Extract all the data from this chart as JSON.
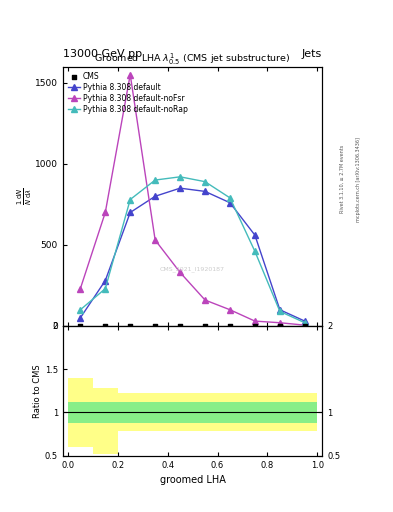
{
  "title_top": "13000 GeV pp",
  "title_right": "Jets",
  "plot_title": "Groomed LHA $\\lambda^{1}_{0.5}$ (CMS jet substructure)",
  "xlabel": "groomed LHA",
  "ylabel_ratio": "Ratio to CMS",
  "watermark": "CMS_2021_I1920187",
  "rivet_text": "Rivet 3.1.10, ≥ 2.7M events",
  "mcplots_text": "mcplots.cern.ch [arXiv:1306.3436]",
  "x_pts": [
    0.05,
    0.15,
    0.25,
    0.35,
    0.45,
    0.55,
    0.65,
    0.75,
    0.85,
    0.95
  ],
  "cms_y": [
    2,
    2,
    2,
    2,
    2,
    2,
    2,
    2,
    2,
    2
  ],
  "default_y": [
    50,
    280,
    700,
    800,
    850,
    830,
    760,
    560,
    100,
    30
  ],
  "noFsr_y": [
    230,
    700,
    1550,
    530,
    330,
    160,
    100,
    30,
    20,
    5
  ],
  "noRap_y": [
    100,
    230,
    780,
    900,
    920,
    890,
    790,
    460,
    90,
    20
  ],
  "color_default": "#4444cc",
  "color_noFsr": "#bb44bb",
  "color_noRap": "#44bbbb",
  "color_cms": "#000000",
  "ylim_main": [
    0,
    1600
  ],
  "ylim_ratio": [
    0.5,
    2.0
  ],
  "yticks_main": [
    0,
    500,
    1000,
    1500
  ],
  "xticks": [
    0.0,
    0.2,
    0.4,
    0.6,
    0.8,
    1.0
  ],
  "legend_labels": [
    "CMS",
    "Pythia 8.308 default",
    "Pythia 8.308 default-noFsr",
    "Pythia 8.308 default-noRap"
  ],
  "bin_edges": [
    0.0,
    0.1,
    0.2,
    0.3,
    0.4,
    0.5,
    0.6,
    0.7,
    0.8,
    0.9,
    1.0
  ],
  "yellow_lo": [
    0.6,
    0.52,
    0.78,
    0.78,
    0.78,
    0.78,
    0.78,
    0.78,
    0.78,
    0.78
  ],
  "yellow_hi": [
    1.4,
    1.28,
    1.22,
    1.22,
    1.22,
    1.22,
    1.22,
    1.22,
    1.22,
    1.22
  ],
  "green_lo": [
    0.88,
    0.88,
    0.88,
    0.88,
    0.88,
    0.88,
    0.88,
    0.88,
    0.88,
    0.88
  ],
  "green_hi": [
    1.12,
    1.12,
    1.12,
    1.12,
    1.12,
    1.12,
    1.12,
    1.12,
    1.12,
    1.12
  ]
}
